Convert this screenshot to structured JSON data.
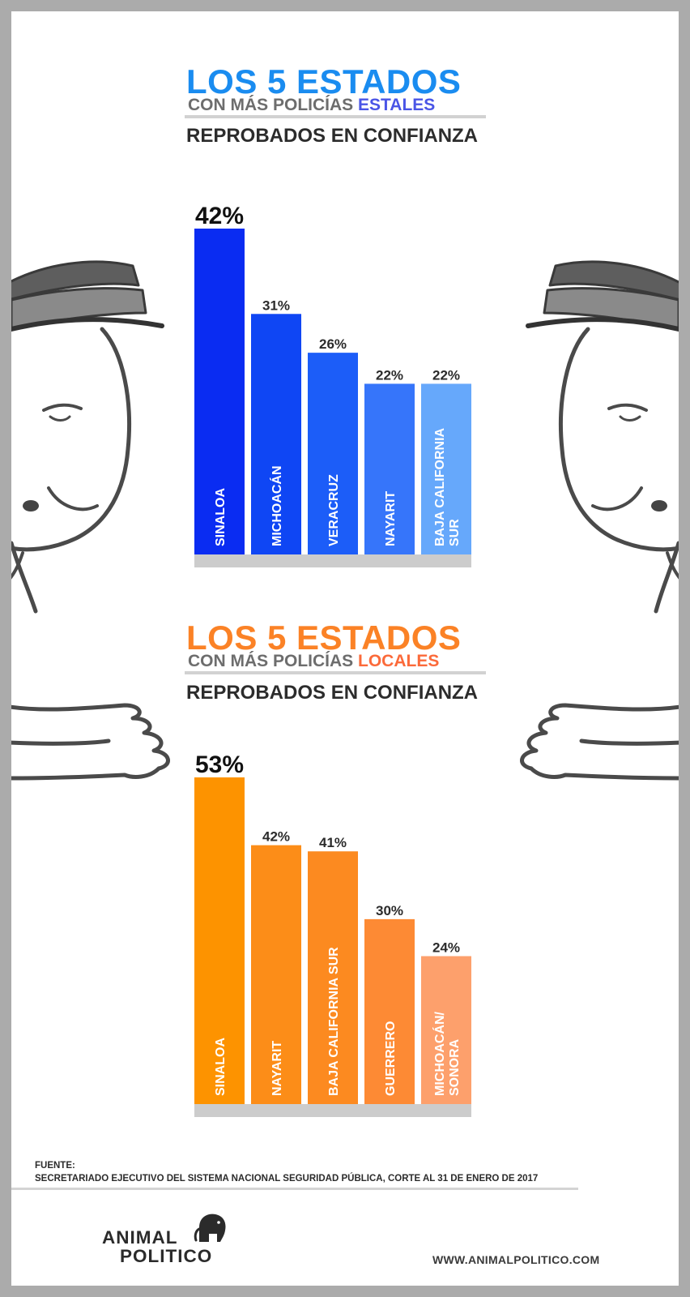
{
  "colors": {
    "background_frame": "#ababab",
    "paper": "#ffffff",
    "blue_title": "#1a8cf0",
    "blue_accent": "#4a55e6",
    "orange_title": "#fb8226",
    "orange_accent": "#fb6a3a",
    "axis_gray": "#cccccc",
    "ink": "#4a4a4a"
  },
  "section_estatales": {
    "title_big": "LOS 5 ESTADOS",
    "title_sub_prefix": "CON MÁS POLICÍAS ",
    "title_sub_highlight": "ESTALES",
    "title_third": "REPROBADOS EN CONFIANZA"
  },
  "section_locales": {
    "title_big": "LOS 5 ESTADOS",
    "title_sub_prefix": "CON MÁS POLICÍAS ",
    "title_sub_highlight": "LOCALES",
    "title_third": "REPROBADOS EN CONFIANZA"
  },
  "chart_data": [
    {
      "type": "bar",
      "orientation": "vertical",
      "unit": "%",
      "categories": [
        "SINALOA",
        "MICHOACÁN",
        "VERACRUZ",
        "NAYARIT",
        "BAJA CALIFORNIA SUR"
      ],
      "category_lines": [
        [
          "SINALOA"
        ],
        [
          "MICHOACÁN"
        ],
        [
          "VERACRUZ"
        ],
        [
          "NAYARIT"
        ],
        [
          "BAJA CALIFORNIA",
          "SUR"
        ]
      ],
      "values": [
        42,
        31,
        26,
        22,
        22
      ],
      "value_labels": [
        "42%",
        "31%",
        "26%",
        "22%",
        "22%"
      ],
      "bar_colors": [
        "#0a2cf2",
        "#0f46f4",
        "#1c5df8",
        "#3675fa",
        "#66a8fb"
      ],
      "ylim": [
        0,
        42
      ],
      "label_position": "inside-bottom-rotated",
      "grid": false,
      "legend": "none"
    },
    {
      "type": "bar",
      "orientation": "vertical",
      "unit": "%",
      "categories": [
        "SINALOA",
        "NAYARIT",
        "BAJA CALIFORNIA SUR",
        "GUERRERO",
        "MICHOACÁN/ SONORA"
      ],
      "category_lines": [
        [
          "SINALOA"
        ],
        [
          "NAYARIT"
        ],
        [
          "BAJA CALIFORNIA SUR"
        ],
        [
          "GUERRERO"
        ],
        [
          "MICHOACÁN/",
          "SONORA"
        ]
      ],
      "values": [
        53,
        42,
        41,
        30,
        24
      ],
      "value_labels": [
        "53%",
        "42%",
        "41%",
        "30%",
        "24%"
      ],
      "bar_colors": [
        "#fd9300",
        "#fc8d18",
        "#fc8a20",
        "#fd8a34",
        "#fda06c"
      ],
      "ylim": [
        0,
        53
      ],
      "label_position": "inside-bottom-rotated",
      "grid": false,
      "legend": "none"
    }
  ],
  "footer": {
    "source_label": "FUENTE:",
    "source_text": "SECRETARIADO EJECUTIVO DEL SISTEMA NACIONAL SEGURIDAD PÚBLICA, CORTE AL 31 DE ENERO DE 2017",
    "logo_line1": "ANIMAL",
    "logo_line2": "POLITICO",
    "logo_icon": "elephant-icon",
    "url": "WWW.ANIMALPOLITICO.COM"
  }
}
